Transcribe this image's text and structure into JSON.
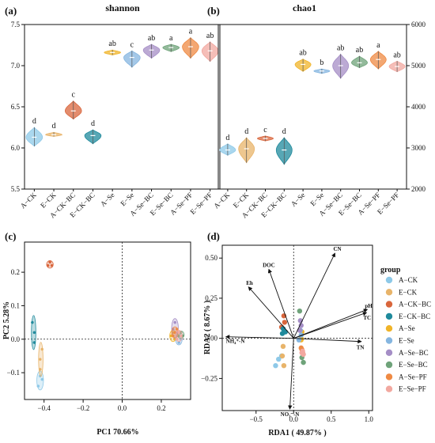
{
  "panels": {
    "a": {
      "label": "(a)",
      "title": "shannon"
    },
    "b": {
      "label": "(b)",
      "title": "chao1"
    },
    "c": {
      "label": "(c)",
      "xlabel": "PC1 70.66%",
      "ylabel": "PC2 5.28%"
    },
    "d": {
      "label": "(d)",
      "xlabel": "RDA1 ( 49.87% )",
      "ylabel": "RDA2 ( 8.67% )"
    }
  },
  "legend": {
    "title": "group"
  },
  "colors": {
    "A-CK": "#8ec9e8",
    "E-CK": "#e8b46a",
    "A-CK-BC": "#d9663c",
    "E-CK-BC": "#1f8a9c",
    "A-Se": "#f0b429",
    "E-Se": "#85b6e0",
    "A-Se-BC": "#a58ec6",
    "E-Se-BC": "#6fa37a",
    "A-Se-PF": "#ef8a43",
    "E-Se-PF": "#f2a8a0"
  },
  "chart_data": [
    {
      "type": "violin",
      "title": "shannon",
      "categories": [
        "A−CK",
        "E−CK",
        "A−CK−BC",
        "E−CK−BC",
        "A−Se",
        "E−Se",
        "A−Se−BC",
        "E−Se−BC",
        "A−Se−PF",
        "E−Se−PF"
      ],
      "groups": [
        "A-CK",
        "E-CK",
        "A-CK-BC",
        "E-CK-BC",
        "A-Se",
        "E-Se",
        "A-Se-BC",
        "E-Se-BC",
        "A-Se-PF",
        "E-Se-PF"
      ],
      "median": [
        6.13,
        6.16,
        6.45,
        6.15,
        7.16,
        7.1,
        7.19,
        7.22,
        7.23,
        7.18
      ],
      "min": [
        6.02,
        6.14,
        6.35,
        6.05,
        7.13,
        6.98,
        7.09,
        7.17,
        7.09,
        7.05
      ],
      "max": [
        6.25,
        6.19,
        6.57,
        6.22,
        7.19,
        7.18,
        7.26,
        7.26,
        7.34,
        7.29
      ],
      "significance": [
        "d",
        "d",
        "c",
        "d",
        "ab",
        "c",
        "ab",
        "a",
        "a",
        "ab"
      ],
      "ylim": [
        5.5,
        7.5
      ],
      "yticks": [
        5.5,
        6.0,
        6.5,
        7.0,
        7.5
      ],
      "ytick_labels": [
        "5.5",
        "6.0",
        "6.5",
        "7.0",
        "7.5"
      ]
    },
    {
      "type": "violin",
      "title": "chao1",
      "categories": [
        "A−CK",
        "E−CK",
        "A−CK−BC",
        "E−CK−BC",
        "A−Se",
        "E−Se",
        "A−Se−BC",
        "E−Se−BC",
        "A−Se−PF",
        "E−Se−PF"
      ],
      "groups": [
        "A-CK",
        "E-CK",
        "A-CK-BC",
        "E-CK-BC",
        "A-Se",
        "E-Se",
        "A-Se-BC",
        "E-Se-BC",
        "A-Se-PF",
        "E-Se-PF"
      ],
      "median": [
        2950,
        2980,
        3230,
        2950,
        5030,
        4870,
        5000,
        5070,
        5150,
        4980
      ],
      "min": [
        2820,
        2640,
        3170,
        2600,
        4860,
        4810,
        4690,
        4950,
        4920,
        4850
      ],
      "max": [
        3100,
        3250,
        3290,
        3250,
        5160,
        4920,
        5280,
        5230,
        5350,
        5110
      ],
      "significance": [
        "d",
        "d",
        "c",
        "d",
        "ab",
        "b",
        "ab",
        "ab",
        "a",
        "ab"
      ],
      "ylim": [
        2000,
        6000
      ],
      "yticks": [
        2000,
        3000,
        4000,
        5000,
        6000
      ],
      "ytick_labels": [
        "2000",
        "3000",
        "4000",
        "5000",
        "6000"
      ]
    },
    {
      "type": "scatter",
      "xlabel": "PC1 70.66%",
      "ylabel": "PC2 5.28%",
      "xlim": [
        -0.5,
        0.35
      ],
      "ylim": [
        -0.18,
        0.29
      ],
      "xticks": [
        -0.4,
        -0.2,
        0.0,
        0.2
      ],
      "xtick_labels": [
        "−0.4",
        "−0.2",
        "0.0",
        "0.2"
      ],
      "yticks": [
        -0.1,
        0.0,
        0.1,
        0.2
      ],
      "ytick_labels": [
        "−0.1",
        "0.0",
        "0.1",
        "0.2"
      ],
      "series": [
        {
          "group": "A-CK",
          "points": [
            [
              -0.42,
              -0.11
            ],
            [
              -0.43,
              -0.14
            ],
            [
              -0.41,
              -0.12
            ]
          ]
        },
        {
          "group": "E-CK",
          "points": [
            [
              -0.42,
              -0.06
            ],
            [
              -0.41,
              -0.03
            ],
            [
              -0.42,
              -0.09
            ]
          ]
        },
        {
          "group": "A-CK-BC",
          "points": [
            [
              -0.37,
              0.23
            ],
            [
              -0.38,
              0.22
            ],
            [
              -0.36,
              0.22
            ]
          ]
        },
        {
          "group": "E-CK-BC",
          "points": [
            [
              -0.45,
              0.02
            ],
            [
              -0.45,
              -0.01
            ],
            [
              -0.46,
              0.05
            ]
          ]
        },
        {
          "group": "A-Se",
          "points": [
            [
              0.25,
              0.01
            ],
            [
              0.27,
              0.0
            ],
            [
              0.26,
              0.02
            ]
          ]
        },
        {
          "group": "E-Se",
          "points": [
            [
              0.28,
              0.01
            ],
            [
              0.29,
              -0.01
            ],
            [
              0.3,
              0.0
            ]
          ]
        },
        {
          "group": "A-Se-BC",
          "points": [
            [
              0.26,
              0.03
            ],
            [
              0.27,
              0.05
            ],
            [
              0.28,
              0.02
            ]
          ]
        },
        {
          "group": "E-Se-BC",
          "points": [
            [
              0.29,
              0.01
            ],
            [
              0.3,
              0.02
            ],
            [
              0.31,
              0.01
            ]
          ]
        },
        {
          "group": "A-Se-PF",
          "points": [
            [
              0.27,
              0.02
            ],
            [
              0.28,
              0.03
            ],
            [
              0.26,
              0.01
            ]
          ]
        },
        {
          "group": "E-Se-PF",
          "points": [
            [
              0.28,
              0.0
            ],
            [
              0.3,
              0.01
            ],
            [
              0.29,
              0.02
            ]
          ]
        }
      ]
    },
    {
      "type": "scatter",
      "xlabel": "RDA1 ( 49.87% )",
      "ylabel": "RDA2 ( 8.67% )",
      "xlim": [
        -0.95,
        1.05
      ],
      "ylim": [
        -0.45,
        0.58
      ],
      "xticks": [
        -0.5,
        0.0,
        0.5,
        1.0
      ],
      "xtick_labels": [
        "−0.5",
        "0.0",
        "0.5",
        "1.0"
      ],
      "yticks": [
        -0.25,
        0.0,
        0.25,
        0.5
      ],
      "ytick_labels": [
        "−0.25",
        "0.00",
        "0.25",
        "0.50"
      ],
      "arrows": [
        {
          "label": "CN",
          "x": 0.55,
          "y": 0.53
        },
        {
          "label": "pH",
          "x": 0.98,
          "y": 0.18
        },
        {
          "label": "TC",
          "x": 0.97,
          "y": 0.16
        },
        {
          "label": "TN",
          "x": 0.9,
          "y": -0.02
        },
        {
          "label": "DOC",
          "x": -0.33,
          "y": 0.43
        },
        {
          "label": "Eh",
          "x": -0.6,
          "y": 0.32
        },
        {
          "label": "NH₄⁺-N",
          "x": -0.9,
          "y": 0.01
        },
        {
          "label": "NO₃⁻-N",
          "x": -0.05,
          "y": -0.44
        }
      ],
      "series": [
        {
          "group": "A-CK",
          "points": [
            [
              -0.24,
              -0.17
            ],
            [
              -0.2,
              -0.13
            ],
            [
              -0.16,
              -0.11
            ]
          ]
        },
        {
          "group": "E-CK",
          "points": [
            [
              -0.13,
              -0.17
            ],
            [
              -0.14,
              -0.05
            ],
            [
              -0.15,
              -0.11
            ]
          ]
        },
        {
          "group": "A-CK-BC",
          "points": [
            [
              -0.13,
              0.14
            ],
            [
              -0.12,
              0.1
            ],
            [
              -0.16,
              0.07
            ]
          ]
        },
        {
          "group": "E-CK-BC",
          "points": [
            [
              -0.15,
              0.03
            ],
            [
              -0.14,
              0.06
            ],
            [
              -0.11,
              0.04
            ]
          ]
        },
        {
          "group": "A-Se",
          "points": [
            [
              0.1,
              0.0
            ],
            [
              0.11,
              0.04
            ],
            [
              0.1,
              -0.01
            ]
          ]
        },
        {
          "group": "E-Se",
          "points": [
            [
              0.07,
              -0.01
            ],
            [
              0.1,
              0.02
            ],
            [
              0.09,
              0.05
            ]
          ]
        },
        {
          "group": "A-Se-BC",
          "points": [
            [
              0.09,
              0.11
            ],
            [
              0.1,
              0.08
            ],
            [
              0.08,
              0.05
            ]
          ]
        },
        {
          "group": "E-Se-BC",
          "points": [
            [
              0.11,
              -0.12
            ],
            [
              0.13,
              -0.15
            ],
            [
              0.08,
              0.17
            ]
          ]
        },
        {
          "group": "A-Se-PF",
          "points": [
            [
              0.11,
              -0.07
            ],
            [
              0.12,
              -0.09
            ],
            [
              0.1,
              -0.06
            ]
          ]
        },
        {
          "group": "E-Se-PF",
          "points": [
            [
              0.12,
              -0.08
            ],
            [
              0.13,
              -0.1
            ],
            [
              0.11,
              -0.09
            ]
          ]
        }
      ]
    }
  ]
}
